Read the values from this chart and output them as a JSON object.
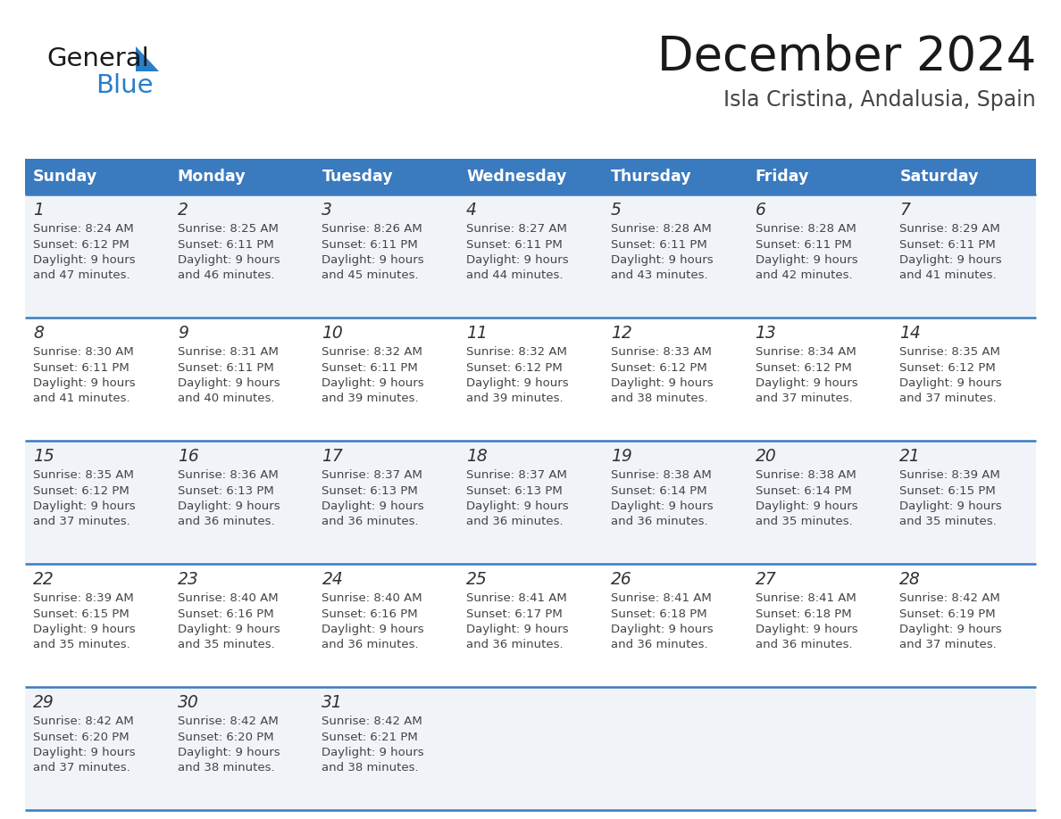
{
  "title": "December 2024",
  "subtitle": "Isla Cristina, Andalusia, Spain",
  "header_color": "#3a7abf",
  "header_text_color": "#ffffff",
  "days_of_week": [
    "Sunday",
    "Monday",
    "Tuesday",
    "Wednesday",
    "Thursday",
    "Friday",
    "Saturday"
  ],
  "row_bg_even": "#f0f4f8",
  "row_bg_odd": "#ffffff",
  "divider_color": "#3a7abf",
  "cell_text_color": "#444444",
  "day_num_color": "#333333",
  "calendar_data": [
    [
      {
        "day": 1,
        "sunrise": "8:24 AM",
        "sunset": "6:12 PM",
        "daylight": "9 hours and 47 minutes"
      },
      {
        "day": 2,
        "sunrise": "8:25 AM",
        "sunset": "6:11 PM",
        "daylight": "9 hours and 46 minutes"
      },
      {
        "day": 3,
        "sunrise": "8:26 AM",
        "sunset": "6:11 PM",
        "daylight": "9 hours and 45 minutes"
      },
      {
        "day": 4,
        "sunrise": "8:27 AM",
        "sunset": "6:11 PM",
        "daylight": "9 hours and 44 minutes"
      },
      {
        "day": 5,
        "sunrise": "8:28 AM",
        "sunset": "6:11 PM",
        "daylight": "9 hours and 43 minutes"
      },
      {
        "day": 6,
        "sunrise": "8:28 AM",
        "sunset": "6:11 PM",
        "daylight": "9 hours and 42 minutes"
      },
      {
        "day": 7,
        "sunrise": "8:29 AM",
        "sunset": "6:11 PM",
        "daylight": "9 hours and 41 minutes"
      }
    ],
    [
      {
        "day": 8,
        "sunrise": "8:30 AM",
        "sunset": "6:11 PM",
        "daylight": "9 hours and 41 minutes"
      },
      {
        "day": 9,
        "sunrise": "8:31 AM",
        "sunset": "6:11 PM",
        "daylight": "9 hours and 40 minutes"
      },
      {
        "day": 10,
        "sunrise": "8:32 AM",
        "sunset": "6:11 PM",
        "daylight": "9 hours and 39 minutes"
      },
      {
        "day": 11,
        "sunrise": "8:32 AM",
        "sunset": "6:12 PM",
        "daylight": "9 hours and 39 minutes"
      },
      {
        "day": 12,
        "sunrise": "8:33 AM",
        "sunset": "6:12 PM",
        "daylight": "9 hours and 38 minutes"
      },
      {
        "day": 13,
        "sunrise": "8:34 AM",
        "sunset": "6:12 PM",
        "daylight": "9 hours and 37 minutes"
      },
      {
        "day": 14,
        "sunrise": "8:35 AM",
        "sunset": "6:12 PM",
        "daylight": "9 hours and 37 minutes"
      }
    ],
    [
      {
        "day": 15,
        "sunrise": "8:35 AM",
        "sunset": "6:12 PM",
        "daylight": "9 hours and 37 minutes"
      },
      {
        "day": 16,
        "sunrise": "8:36 AM",
        "sunset": "6:13 PM",
        "daylight": "9 hours and 36 minutes"
      },
      {
        "day": 17,
        "sunrise": "8:37 AM",
        "sunset": "6:13 PM",
        "daylight": "9 hours and 36 minutes"
      },
      {
        "day": 18,
        "sunrise": "8:37 AM",
        "sunset": "6:13 PM",
        "daylight": "9 hours and 36 minutes"
      },
      {
        "day": 19,
        "sunrise": "8:38 AM",
        "sunset": "6:14 PM",
        "daylight": "9 hours and 36 minutes"
      },
      {
        "day": 20,
        "sunrise": "8:38 AM",
        "sunset": "6:14 PM",
        "daylight": "9 hours and 35 minutes"
      },
      {
        "day": 21,
        "sunrise": "8:39 AM",
        "sunset": "6:15 PM",
        "daylight": "9 hours and 35 minutes"
      }
    ],
    [
      {
        "day": 22,
        "sunrise": "8:39 AM",
        "sunset": "6:15 PM",
        "daylight": "9 hours and 35 minutes"
      },
      {
        "day": 23,
        "sunrise": "8:40 AM",
        "sunset": "6:16 PM",
        "daylight": "9 hours and 35 minutes"
      },
      {
        "day": 24,
        "sunrise": "8:40 AM",
        "sunset": "6:16 PM",
        "daylight": "9 hours and 36 minutes"
      },
      {
        "day": 25,
        "sunrise": "8:41 AM",
        "sunset": "6:17 PM",
        "daylight": "9 hours and 36 minutes"
      },
      {
        "day": 26,
        "sunrise": "8:41 AM",
        "sunset": "6:18 PM",
        "daylight": "9 hours and 36 minutes"
      },
      {
        "day": 27,
        "sunrise": "8:41 AM",
        "sunset": "6:18 PM",
        "daylight": "9 hours and 36 minutes"
      },
      {
        "day": 28,
        "sunrise": "8:42 AM",
        "sunset": "6:19 PM",
        "daylight": "9 hours and 37 minutes"
      }
    ],
    [
      {
        "day": 29,
        "sunrise": "8:42 AM",
        "sunset": "6:20 PM",
        "daylight": "9 hours and 37 minutes"
      },
      {
        "day": 30,
        "sunrise": "8:42 AM",
        "sunset": "6:20 PM",
        "daylight": "9 hours and 38 minutes"
      },
      {
        "day": 31,
        "sunrise": "8:42 AM",
        "sunset": "6:21 PM",
        "daylight": "9 hours and 38 minutes"
      },
      null,
      null,
      null,
      null
    ]
  ],
  "logo_color_general": "#1a1a1a",
  "logo_color_blue": "#2a7dc9"
}
